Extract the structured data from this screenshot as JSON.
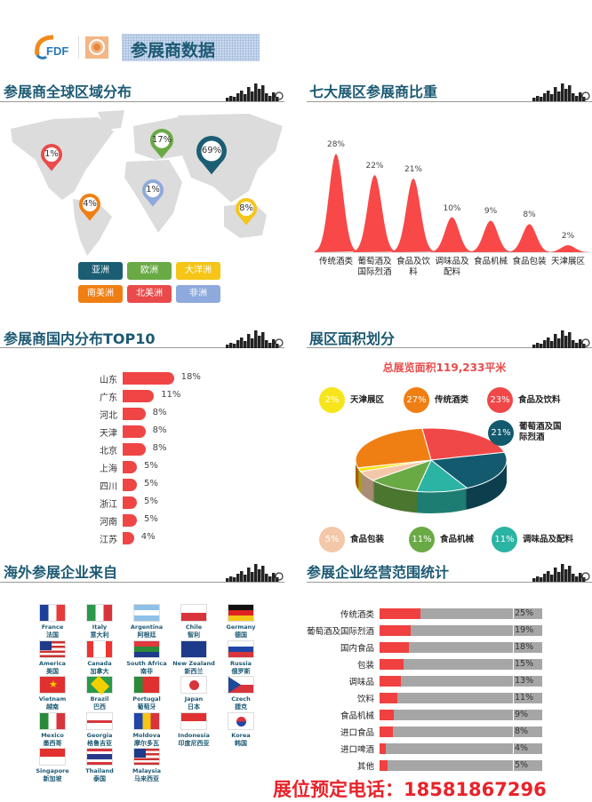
{
  "header": {
    "logo_text": "FDF",
    "title": "参展商数据"
  },
  "sections": {
    "global": "参展商全球区域分布",
    "zones": "七大展区参展商比重",
    "domestic": "参展商国内分布TOP10",
    "area": "展区面积划分",
    "overseas": "海外参展企业来自",
    "scope": "参展企业经营范围统计"
  },
  "colors": {
    "accent": "#1d5a73",
    "red": "#f04545"
  },
  "chart_data": [
    {
      "type": "map-pins",
      "pins": [
        {
          "region": "北美洲",
          "value": "1%",
          "color": "#e94b4b"
        },
        {
          "region": "南美洲",
          "value": "4%",
          "color": "#f07f13"
        },
        {
          "region": "欧洲",
          "value": "17%",
          "color": "#6aaa45"
        },
        {
          "region": "非洲",
          "value": "1%",
          "color": "#8ea9dc"
        },
        {
          "region": "亚洲",
          "value": "69%",
          "color": "#1b5e74"
        },
        {
          "region": "大洋洲",
          "value": "8%",
          "color": "#f5c518"
        }
      ],
      "legend": [
        {
          "label": "亚洲",
          "color": "#1b5e74"
        },
        {
          "label": "欧洲",
          "color": "#6aaa45"
        },
        {
          "label": "大洋洲",
          "color": "#f5c518"
        },
        {
          "label": "南美洲",
          "color": "#f07f13"
        },
        {
          "label": "北美洲",
          "color": "#e94b4b"
        },
        {
          "label": "非洲",
          "color": "#8ea9dc"
        }
      ]
    },
    {
      "type": "area",
      "categories": [
        "传统酒类",
        "葡萄酒及国际烈酒",
        "食品及饮料",
        "调味品及配料",
        "食品机械",
        "食品包装",
        "天津展区"
      ],
      "values": [
        28,
        22,
        21,
        10,
        9,
        8,
        2
      ],
      "labels": [
        "28%",
        "22%",
        "21%",
        "10%",
        "9%",
        "8%",
        "2%"
      ],
      "color": "#f84848"
    },
    {
      "type": "bar",
      "orientation": "horizontal",
      "categories": [
        "山东",
        "广东",
        "河北",
        "天津",
        "北京",
        "上海",
        "四川",
        "浙江",
        "河南",
        "江苏"
      ],
      "values": [
        18,
        11,
        8,
        8,
        8,
        5,
        5,
        5,
        5,
        4
      ],
      "labels": [
        "18%",
        "11%",
        "8%",
        "8%",
        "8%",
        "5%",
        "5%",
        "5%",
        "5%",
        "4%"
      ]
    },
    {
      "type": "pie",
      "title": "总展览面积119,233平米",
      "slices": [
        {
          "name": "食品及饮料",
          "value": 23,
          "label": "23%",
          "color": "#f04848"
        },
        {
          "name": "葡萄酒及国际烈酒",
          "value": 21,
          "label": "21%",
          "color": "#135a6e"
        },
        {
          "name": "调味品及配料",
          "value": 11,
          "label": "11%",
          "color": "#2bb3a3"
        },
        {
          "name": "食品机械",
          "value": 11,
          "label": "11%",
          "color": "#6aaa45"
        },
        {
          "name": "食品包装",
          "value": 5,
          "label": "5%",
          "color": "#f3c7a8"
        },
        {
          "name": "天津展区",
          "value": 2,
          "label": "2%",
          "color": "#f7e51c"
        },
        {
          "name": "传统酒类",
          "value": 27,
          "label": "27%",
          "color": "#f07f13"
        }
      ]
    },
    {
      "type": "bar",
      "orientation": "horizontal",
      "categories": [
        "传统酒类",
        "葡萄酒及国际烈酒",
        "国内食品",
        "包装",
        "调味品",
        "饮料",
        "食品机械",
        "进口食品",
        "进口啤酒",
        "其他"
      ],
      "values": [
        25,
        19,
        18,
        15,
        13,
        11,
        9,
        8,
        4,
        5
      ],
      "labels": [
        "25%",
        "19%",
        "18%",
        "15%",
        "13%",
        "11%",
        "9%",
        "8%",
        "4%",
        "5%"
      ]
    }
  ],
  "flags": [
    {
      "en": "France",
      "zh": "法国",
      "dir": "v",
      "stripes": [
        "#1d3f9a",
        "#ffffff",
        "#e63b3b"
      ]
    },
    {
      "en": "Italy",
      "zh": "意大利",
      "dir": "v",
      "stripes": [
        "#2a9a4a",
        "#ffffff",
        "#d8343c"
      ]
    },
    {
      "en": "Argentina",
      "zh": "阿根廷",
      "dir": "h",
      "stripes": [
        "#8ec0e8",
        "#ffffff",
        "#8ec0e8"
      ]
    },
    {
      "en": "Chile",
      "zh": "智利",
      "dir": "h",
      "stripes": [
        "#ffffff",
        "#d8343c"
      ]
    },
    {
      "en": "Germany",
      "zh": "德国",
      "dir": "h",
      "stripes": [
        "#111111",
        "#dd2222",
        "#f5c518"
      ]
    },
    {
      "en": "America",
      "zh": "美国",
      "dir": "h",
      "stripes": [
        "#c33",
        "#fff",
        "#c33",
        "#fff",
        "#c33",
        "#fff",
        "#c33"
      ]
    },
    {
      "en": "Canada",
      "zh": "加拿大",
      "dir": "v",
      "stripes": [
        "#e33",
        "#fff",
        "#fff",
        "#e33"
      ]
    },
    {
      "en": "South Africa",
      "zh": "南非",
      "dir": "h",
      "stripes": [
        "#e0393e",
        "#2a8a3a",
        "#1e3a8a"
      ]
    },
    {
      "en": "New Zealand",
      "zh": "新西兰",
      "dir": "h",
      "stripes": [
        "#1e3a8a"
      ]
    },
    {
      "en": "Russia",
      "zh": "俄罗斯",
      "dir": "h",
      "stripes": [
        "#ffffff",
        "#2246a8",
        "#d8343c"
      ]
    },
    {
      "en": "Vietnam",
      "zh": "越南",
      "dir": "h",
      "stripes": [
        "#e03030"
      ]
    },
    {
      "en": "Brazil",
      "zh": "巴西",
      "dir": "h",
      "stripes": [
        "#2a9a4a"
      ]
    },
    {
      "en": "Portugal",
      "zh": "葡萄牙",
      "dir": "v",
      "stripes": [
        "#2a8a3a",
        "#e03030",
        "#e03030"
      ]
    },
    {
      "en": "Japan",
      "zh": "日本",
      "dir": "h",
      "stripes": [
        "#ffffff"
      ]
    },
    {
      "en": "Czech",
      "zh": "捷克",
      "dir": "h",
      "stripes": [
        "#ffffff",
        "#d8343c"
      ]
    },
    {
      "en": "Mexico",
      "zh": "墨西哥",
      "dir": "v",
      "stripes": [
        "#2a8a3a",
        "#ffffff",
        "#d8343c"
      ]
    },
    {
      "en": "Georgia",
      "zh": "格鲁吉亚",
      "dir": "h",
      "stripes": [
        "#ffffff"
      ]
    },
    {
      "en": "Moldova",
      "zh": "摩尔多瓦",
      "dir": "v",
      "stripes": [
        "#2246a8",
        "#f5c518",
        "#d8343c"
      ]
    },
    {
      "en": "Indonesia",
      "zh": "印度尼西亚",
      "dir": "h",
      "stripes": [
        "#e03030",
        "#ffffff"
      ]
    },
    {
      "en": "Korea",
      "zh": "韩国",
      "dir": "h",
      "stripes": [
        "#ffffff"
      ]
    },
    {
      "en": "Singapore",
      "zh": "新加坡",
      "dir": "h",
      "stripes": [
        "#e03030",
        "#ffffff"
      ]
    },
    {
      "en": "Thailand",
      "zh": "泰国",
      "dir": "h",
      "stripes": [
        "#d8343c",
        "#fff",
        "#2a3a8a",
        "#2a3a8a",
        "#fff",
        "#d8343c"
      ]
    },
    {
      "en": "Malaysia",
      "zh": "马来西亚",
      "dir": "h",
      "stripes": [
        "#c33",
        "#fff",
        "#c33",
        "#fff",
        "#c33",
        "#fff",
        "#c33"
      ]
    }
  ],
  "footer": "展位预定电话：18581867296"
}
